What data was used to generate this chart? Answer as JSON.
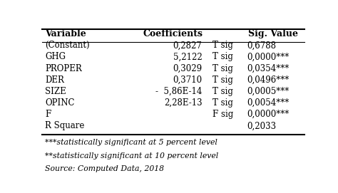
{
  "headers": [
    "Variable",
    "Coefficients",
    "",
    "Sig. Value"
  ],
  "rows": [
    [
      "(Constant)",
      "0,2827",
      "T sig",
      "0,6788"
    ],
    [
      "GHG",
      "5,2122",
      "T sig",
      "0,0000***"
    ],
    [
      "PROPER",
      "0,3029",
      "T sig",
      "0,0354***"
    ],
    [
      "DER",
      "0,3710",
      "T sig",
      "0,0496***"
    ],
    [
      "SIZE",
      "-  5,86E-14",
      "T sig",
      "0,0005***"
    ],
    [
      "OPINC",
      "2,28E-13",
      "T sig",
      "0,0054***"
    ],
    [
      "F",
      "",
      "F sig",
      "0,0000***"
    ],
    [
      "R Square",
      "",
      "",
      "0,2033"
    ]
  ],
  "footnotes": [
    "***statistically significant at 5 percent level",
    "**statistically significant at 10 percent level",
    "Source: Computed Data, 2018"
  ],
  "bg_color": "#ffffff",
  "text_color": "#000000",
  "header_fontsize": 9,
  "body_fontsize": 8.5,
  "footnote_fontsize": 7.8
}
